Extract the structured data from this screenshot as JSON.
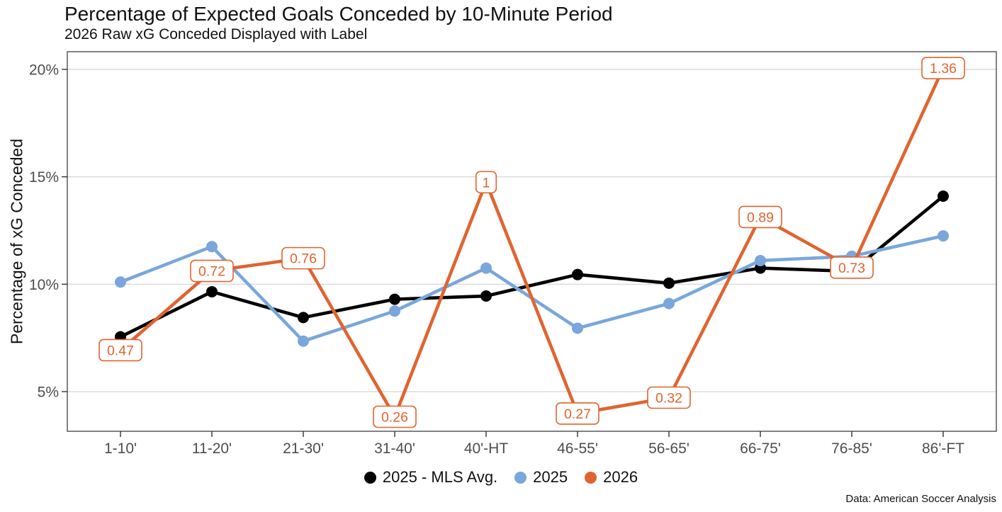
{
  "header": {
    "title": "Percentage of Expected Goals Conceded by 10-Minute Period",
    "subtitle": "2026 Raw xG Conceded Displayed with Label"
  },
  "caption": "Data: American Soccer Analysis",
  "colors": {
    "black_series": "#000000",
    "blue_series": "#79A7DC",
    "orange_series": "#E0642F",
    "gridline": "#DCDCDC",
    "panel_border": "#4D4D4D",
    "tick": "#333333",
    "tick_label": "#4D4D4D",
    "label_box_fill": "#FFFFFF",
    "text": "#111111"
  },
  "chart_data": {
    "type": "line",
    "title": "Percentage of Expected Goals Conceded by 10-Minute Period",
    "subtitle": "2026 Raw xG Conceded Displayed with Label",
    "ylabel": "Percentage of xG Conceded",
    "xlabel": "",
    "caption": "Data: American Soccer Analysis",
    "categories": [
      "1-10'",
      "11-20'",
      "21-30'",
      "31-40'",
      "40'-HT",
      "46-55'",
      "56-65'",
      "66-75'",
      "76-85'",
      "86'-FT"
    ],
    "yticks": [
      {
        "value": 5,
        "label": "5%"
      },
      {
        "value": 10,
        "label": "10%"
      },
      {
        "value": 15,
        "label": "15%"
      },
      {
        "value": 20,
        "label": "20%"
      }
    ],
    "ylim": [
      3.1,
      20.8
    ],
    "grid": "horizontal major gridlines only",
    "legend_position": "bottom center",
    "series": [
      {
        "name": "2025 - MLS Avg.",
        "color": "#000000",
        "values_pct": [
          7.55,
          9.65,
          8.45,
          9.3,
          9.45,
          10.45,
          10.05,
          10.75,
          10.6,
          14.1
        ]
      },
      {
        "name": "2025",
        "color": "#79A7DC",
        "values_pct": [
          10.1,
          11.75,
          7.35,
          8.75,
          10.75,
          7.95,
          9.1,
          11.1,
          11.3,
          12.25
        ]
      },
      {
        "name": "2026",
        "color": "#E0642F",
        "values_pct": [
          6.93,
          10.62,
          11.21,
          3.83,
          14.75,
          3.98,
          4.72,
          13.13,
          10.77,
          20.06
        ],
        "point_labels": [
          "0.47",
          "0.72",
          "0.76",
          "0.26",
          "1",
          "0.27",
          "0.32",
          "0.89",
          "0.73",
          "1.36"
        ],
        "raw_xg": [
          0.47,
          0.72,
          0.76,
          0.26,
          1.0,
          0.27,
          0.32,
          0.89,
          0.73,
          1.36
        ]
      }
    ]
  }
}
